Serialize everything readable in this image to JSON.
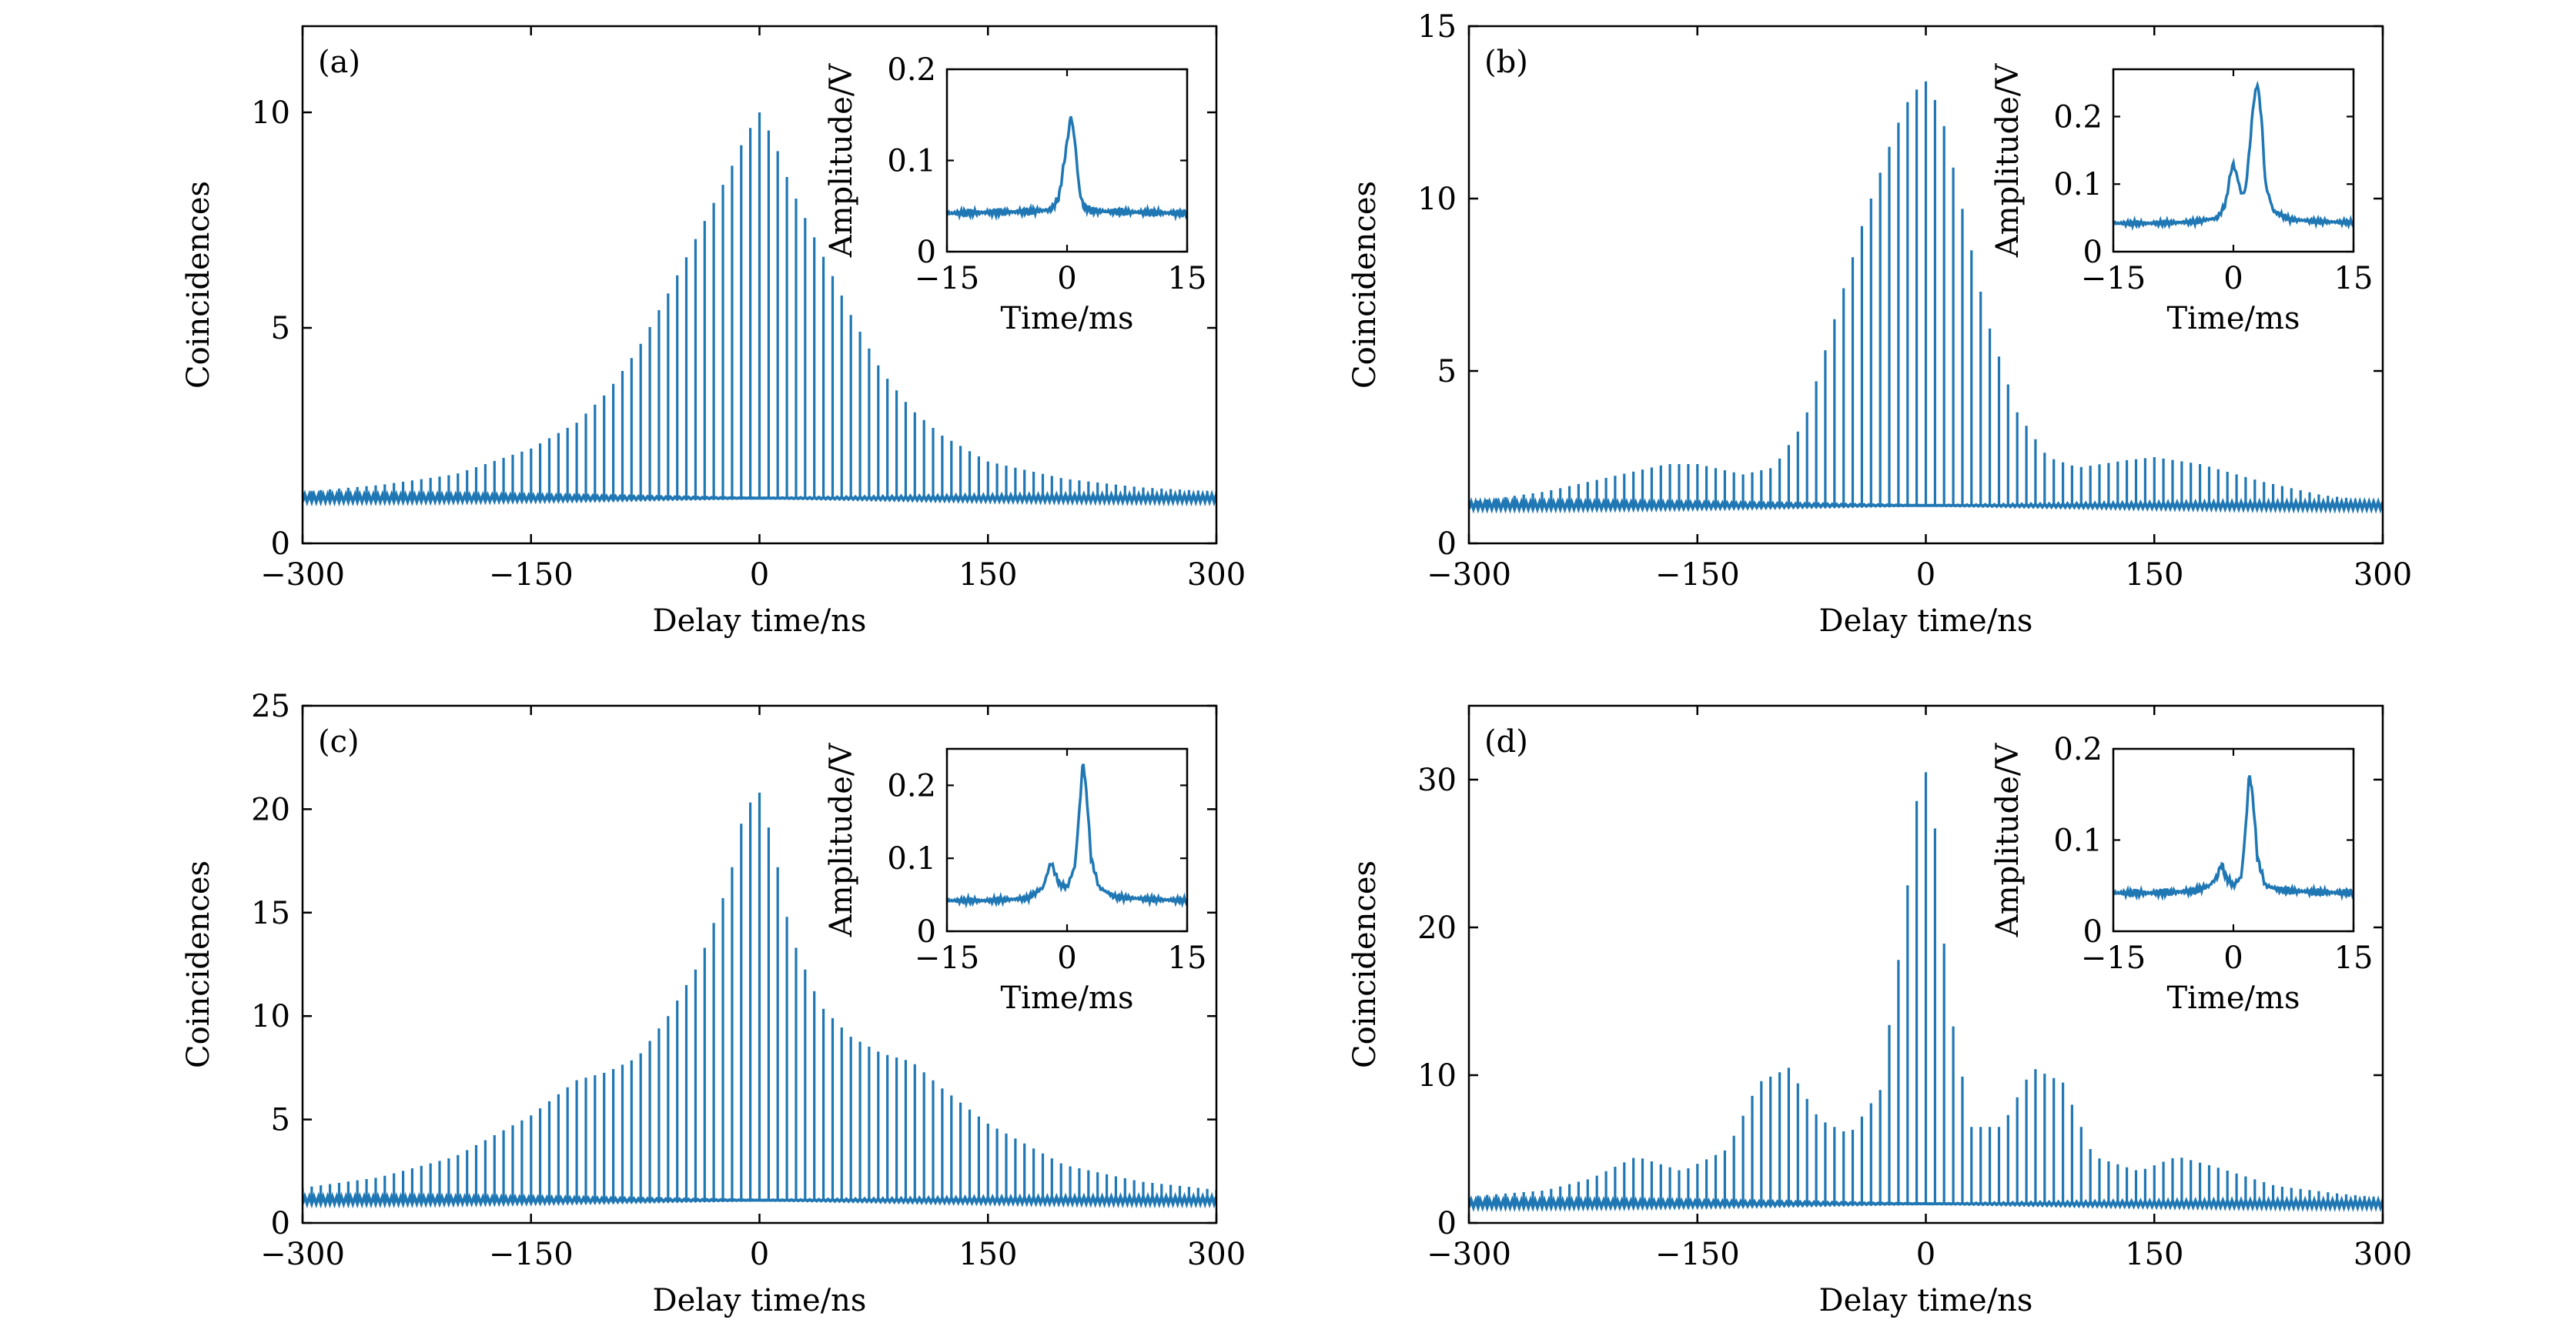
{
  "figure": {
    "color": "#1f77b4",
    "panels": [
      {
        "label": "(a)",
        "xlabel": "Delay time/ns",
        "ylabel": "Coincidences",
        "inset": {
          "xlabel": "Time/ms",
          "ylabel": "Amplitude/V"
        }
      },
      {
        "label": "(b)",
        "xlabel": "Delay time/ns",
        "ylabel": "Coincidences",
        "inset": {
          "xlabel": "Time/ms",
          "ylabel": "Amplitude/V"
        }
      },
      {
        "label": "(c)",
        "xlabel": "Delay time/ns",
        "ylabel": "Coincidences",
        "inset": {
          "xlabel": "Time/ms",
          "ylabel": "Amplitude/V"
        }
      },
      {
        "label": "(d)",
        "xlabel": "Delay time/ns",
        "ylabel": "Coincidences",
        "inset": {
          "xlabel": "Time/ms",
          "ylabel": "Amplitude/V"
        }
      }
    ]
  },
  "chart_data": [
    {
      "type": "bar",
      "panel": "(a)",
      "xlabel": "Delay time/ns",
      "ylabel": "Coincidences",
      "xlim": [
        -300,
        300
      ],
      "ylim": [
        0,
        12
      ],
      "xticks": [
        -300,
        -150,
        0,
        150,
        300
      ],
      "xtick_labels": [
        "−300",
        "−150",
        "0",
        "150",
        "300"
      ],
      "yticks": [
        0,
        5,
        10
      ],
      "ytick_labels": [
        "0",
        "5",
        "10"
      ],
      "peak_spacing_ns": 6,
      "baseline": 1.05,
      "envelope": {
        "x": [
          -300,
          -250,
          -200,
          -150,
          -120,
          -100,
          -80,
          -60,
          -40,
          -20,
          -10,
          0,
          10,
          20,
          40,
          60,
          80,
          100,
          120,
          150,
          200,
          250,
          300
        ],
        "y": [
          1.2,
          1.35,
          1.6,
          2.2,
          2.8,
          3.5,
          4.5,
          5.8,
          7.2,
          8.6,
          9.4,
          10.0,
          9.3,
          8.3,
          6.8,
          5.3,
          4.0,
          3.1,
          2.5,
          1.9,
          1.5,
          1.3,
          1.2
        ]
      },
      "inset": {
        "type": "line",
        "xlabel": "Time/ms",
        "ylabel": "Amplitude/V",
        "xlim": [
          -15,
          15
        ],
        "ylim": [
          0,
          0.2
        ],
        "xticks": [
          -15,
          0,
          15
        ],
        "xtick_labels": [
          "−15",
          "0",
          "15"
        ],
        "yticks": [
          0,
          0.1,
          0.2
        ],
        "ytick_labels": [
          "0",
          "0.1",
          "0.2"
        ],
        "x": [
          -15,
          -10,
          -5,
          -2,
          -1,
          0,
          0.5,
          1,
          1.5,
          2,
          3,
          5,
          10,
          15
        ],
        "y": [
          0.042,
          0.043,
          0.044,
          0.046,
          0.06,
          0.12,
          0.15,
          0.12,
          0.07,
          0.05,
          0.045,
          0.044,
          0.043,
          0.042
        ]
      }
    },
    {
      "type": "bar",
      "panel": "(b)",
      "xlabel": "Delay time/ns",
      "ylabel": "Coincidences",
      "xlim": [
        -300,
        300
      ],
      "ylim": [
        0,
        15
      ],
      "xticks": [
        -300,
        -150,
        0,
        150,
        300
      ],
      "xtick_labels": [
        "−300",
        "−150",
        "0",
        "150",
        "300"
      ],
      "yticks": [
        0,
        5,
        10,
        15
      ],
      "ytick_labels": [
        "0",
        "5",
        "10",
        "15"
      ],
      "peak_spacing_ns": 6,
      "baseline": 1.1,
      "envelope": {
        "x": [
          -300,
          -250,
          -200,
          -170,
          -150,
          -120,
          -100,
          -80,
          -60,
          -40,
          -20,
          -10,
          0,
          10,
          20,
          40,
          60,
          80,
          100,
          130,
          150,
          180,
          220,
          260,
          300
        ],
        "y": [
          1.2,
          1.5,
          2.0,
          2.3,
          2.3,
          2.0,
          2.2,
          3.5,
          6.5,
          9.5,
          12.0,
          13.0,
          13.4,
          12.5,
          10.5,
          6.5,
          3.8,
          2.5,
          2.2,
          2.4,
          2.5,
          2.3,
          1.8,
          1.4,
          1.2
        ]
      },
      "inset": {
        "type": "line",
        "xlabel": "Time/ms",
        "ylabel": "Amplitude/V",
        "xlim": [
          -15,
          15
        ],
        "ylim": [
          0,
          0.27
        ],
        "xticks": [
          -15,
          0,
          15
        ],
        "xtick_labels": [
          "−15",
          "0",
          "15"
        ],
        "yticks": [
          0,
          0.1,
          0.2
        ],
        "ytick_labels": [
          "0",
          "0.1",
          "0.2"
        ],
        "x": [
          -15,
          -10,
          -5,
          -2,
          -1,
          -0.3,
          0,
          0.5,
          1,
          1.5,
          2,
          2.5,
          3,
          3.5,
          4,
          5,
          7,
          10,
          15
        ],
        "y": [
          0.042,
          0.042,
          0.044,
          0.05,
          0.07,
          0.12,
          0.13,
          0.11,
          0.085,
          0.09,
          0.15,
          0.22,
          0.25,
          0.2,
          0.1,
          0.06,
          0.048,
          0.045,
          0.043
        ]
      }
    },
    {
      "type": "bar",
      "panel": "(c)",
      "xlabel": "Delay time/ns",
      "ylabel": "Coincidences",
      "xlim": [
        -300,
        300
      ],
      "ylim": [
        0,
        25
      ],
      "xticks": [
        -300,
        -150,
        0,
        150,
        300
      ],
      "xtick_labels": [
        "−300",
        "−150",
        "0",
        "150",
        "300"
      ],
      "yticks": [
        0,
        5,
        10,
        15,
        20,
        25
      ],
      "ytick_labels": [
        "0",
        "5",
        "10",
        "15",
        "20",
        "25"
      ],
      "peak_spacing_ns": 6,
      "baseline": 1.1,
      "envelope": {
        "x": [
          -300,
          -250,
          -200,
          -150,
          -120,
          -100,
          -80,
          -60,
          -40,
          -20,
          -10,
          0,
          10,
          20,
          40,
          60,
          80,
          100,
          120,
          150,
          200,
          250,
          300
        ],
        "y": [
          1.7,
          2.2,
          3.2,
          5.2,
          6.9,
          7.3,
          8.0,
          10.0,
          12.5,
          16.5,
          20.0,
          20.8,
          18.0,
          14.0,
          10.5,
          9.0,
          8.2,
          7.8,
          6.5,
          4.8,
          2.8,
          2.0,
          1.6
        ]
      },
      "inset": {
        "type": "line",
        "xlabel": "Time/ms",
        "ylabel": "Amplitude/V",
        "xlim": [
          -15,
          15
        ],
        "ylim": [
          0,
          0.25
        ],
        "xticks": [
          -15,
          0,
          15
        ],
        "xtick_labels": [
          "−15",
          "0",
          "15"
        ],
        "yticks": [
          0,
          0.1,
          0.2
        ],
        "ytick_labels": [
          "0",
          "0.1",
          "0.2"
        ],
        "x": [
          -15,
          -10,
          -5,
          -3,
          -2.3,
          -2,
          -1.5,
          -1,
          0,
          1,
          1.5,
          2,
          2.5,
          3,
          4,
          6,
          10,
          15
        ],
        "y": [
          0.042,
          0.042,
          0.045,
          0.06,
          0.085,
          0.095,
          0.08,
          0.065,
          0.06,
          0.09,
          0.16,
          0.235,
          0.18,
          0.1,
          0.06,
          0.047,
          0.044,
          0.042
        ]
      }
    },
    {
      "type": "bar",
      "panel": "(d)",
      "xlabel": "Delay time/ns",
      "ylabel": "Coincidences",
      "xlim": [
        -300,
        300
      ],
      "ylim": [
        0,
        35
      ],
      "xticks": [
        -300,
        -150,
        0,
        150,
        300
      ],
      "xtick_labels": [
        "−300",
        "−150",
        "0",
        "150",
        "300"
      ],
      "yticks": [
        0,
        10,
        20,
        30
      ],
      "ytick_labels": [
        "0",
        "10",
        "20",
        "30"
      ],
      "peak_spacing_ns": 6,
      "baseline": 1.3,
      "envelope": {
        "x": [
          -300,
          -250,
          -220,
          -190,
          -160,
          -130,
          -110,
          -90,
          -70,
          -50,
          -30,
          -15,
          -5,
          0,
          5,
          15,
          30,
          50,
          70,
          90,
          110,
          140,
          165,
          190,
          230,
          270,
          300
        ],
        "y": [
          1.8,
          2.2,
          3.0,
          4.5,
          3.5,
          5.0,
          9.5,
          10.5,
          7.0,
          6.0,
          9.0,
          20.0,
          29.5,
          30.5,
          28.0,
          15.0,
          6.5,
          6.5,
          10.5,
          9.5,
          4.5,
          3.5,
          4.5,
          3.8,
          2.5,
          2.0,
          1.7
        ]
      },
      "inset": {
        "type": "line",
        "xlabel": "Time/ms",
        "ylabel": "Amplitude/V",
        "xlim": [
          -15,
          15
        ],
        "ylim": [
          0,
          0.2
        ],
        "xticks": [
          -15,
          0,
          15
        ],
        "xtick_labels": [
          "−15",
          "0",
          "15"
        ],
        "yticks": [
          0,
          0.1,
          0.2
        ],
        "ytick_labels": [
          "0",
          "0.1",
          "0.2"
        ],
        "x": [
          -15,
          -10,
          -5,
          -3,
          -2,
          -1.5,
          -1,
          0,
          1,
          1.5,
          2,
          2.5,
          3,
          4,
          6,
          10,
          15
        ],
        "y": [
          0.042,
          0.042,
          0.044,
          0.05,
          0.06,
          0.075,
          0.06,
          0.05,
          0.06,
          0.11,
          0.175,
          0.14,
          0.08,
          0.05,
          0.045,
          0.043,
          0.042
        ]
      }
    }
  ]
}
